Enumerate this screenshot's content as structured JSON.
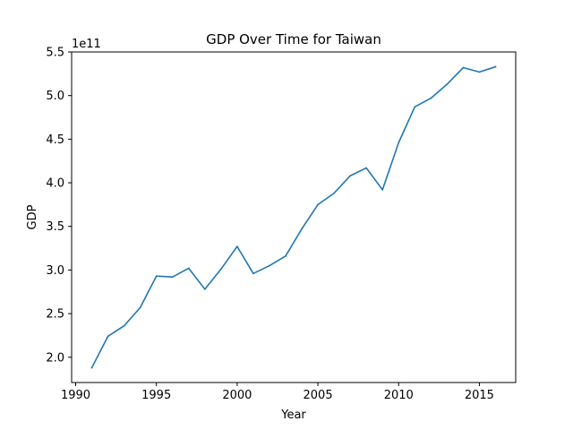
{
  "chart_data": {
    "type": "line",
    "title": "GDP Over Time for Taiwan",
    "xlabel": "Year",
    "ylabel": "GDP",
    "offset_text": "1e11",
    "xlim": [
      1989.75,
      2017.25
    ],
    "ylim": [
      1.71,
      5.5
    ],
    "x_ticks": [
      1990,
      1995,
      2000,
      2005,
      2010,
      2015
    ],
    "y_ticks": [
      2.0,
      2.5,
      3.0,
      3.5,
      4.0,
      4.5,
      5.0,
      5.5
    ],
    "x_tick_labels": [
      "1990",
      "1995",
      "2000",
      "2005",
      "2010",
      "2015"
    ],
    "y_tick_labels": [
      "2.0",
      "2.5",
      "3.0",
      "3.5",
      "4.0",
      "4.5",
      "5.0",
      "5.5"
    ],
    "grid": false,
    "series": [
      {
        "color": "#1f77b4",
        "x": [
          1991,
          1992,
          1993,
          1994,
          1995,
          1996,
          1997,
          1998,
          1999,
          2000,
          2001,
          2002,
          2003,
          2004,
          2005,
          2006,
          2007,
          2008,
          2009,
          2010,
          2011,
          2012,
          2013,
          2014,
          2015,
          2016
        ],
        "y": [
          1.88,
          2.24,
          2.36,
          2.57,
          2.93,
          2.92,
          3.02,
          2.78,
          3.01,
          3.27,
          2.96,
          3.05,
          3.16,
          3.47,
          3.75,
          3.88,
          4.08,
          4.17,
          3.92,
          4.46,
          4.87,
          4.97,
          5.13,
          5.32,
          5.27,
          5.33
        ]
      }
    ]
  }
}
